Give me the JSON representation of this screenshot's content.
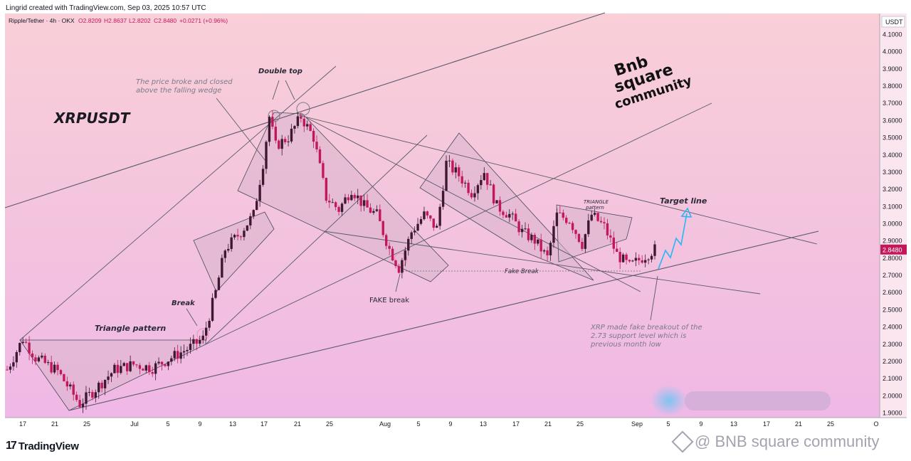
{
  "header": {
    "credit": "Lingrid created with TradingView.com, Sep 03, 2025 10:57 UTC",
    "legend_symbol": "Ripple/Tether · 4h · OKX",
    "legend_o": "O2.8209",
    "legend_h": "H2.8637",
    "legend_l": "L2.8202",
    "legend_c": "C2.8480",
    "legend_change": "+0.0271 (+0.96%)"
  },
  "colors": {
    "bull": "#3d1830",
    "bear": "#c2185b",
    "line": "#5a5a6a",
    "pattern_fill": "#d8b4cc",
    "price_tag": "#c2185b",
    "target_arrow": "#29b6f6"
  },
  "chart_data": {
    "type": "candlestick",
    "symbol_title": "XRPUSDT",
    "quote_currency": "USDT",
    "y_ticks": [
      "1.9000",
      "2.0000",
      "2.1000",
      "2.2000",
      "2.3000",
      "2.4000",
      "2.5000",
      "2.6000",
      "2.7000",
      "2.8000",
      "2.9000",
      "3.0000",
      "3.1000",
      "3.2000",
      "3.3000",
      "3.4000",
      "3.5000",
      "3.6000",
      "3.7000",
      "3.8000",
      "3.9000",
      "4.0000",
      "4.1000"
    ],
    "ylim": [
      1.87,
      4.17
    ],
    "x_ticks": [
      "17",
      "21",
      "25",
      "Jul",
      "5",
      "9",
      "13",
      "17",
      "21",
      "25",
      "Aug",
      "5",
      "9",
      "13",
      "17",
      "21",
      "25",
      "Sep",
      "5",
      "9",
      "13",
      "17",
      "21",
      "25",
      "O"
    ],
    "last_price": "2.8480",
    "price_path": [
      {
        "t": 0,
        "p": 2.15
      },
      {
        "t": 5,
        "p": 2.33
      },
      {
        "t": 9,
        "p": 2.22
      },
      {
        "t": 16,
        "p": 2.14
      },
      {
        "t": 23,
        "p": 1.95
      },
      {
        "t": 27,
        "p": 2.02
      },
      {
        "t": 34,
        "p": 2.15
      },
      {
        "t": 40,
        "p": 2.18
      },
      {
        "t": 46,
        "p": 2.16
      },
      {
        "t": 52,
        "p": 2.22
      },
      {
        "t": 58,
        "p": 2.28
      },
      {
        "t": 62,
        "p": 2.33
      },
      {
        "t": 66,
        "p": 2.6
      },
      {
        "t": 69,
        "p": 2.85
      },
      {
        "t": 74,
        "p": 2.95
      },
      {
        "t": 78,
        "p": 3.05
      },
      {
        "t": 81,
        "p": 3.35
      },
      {
        "t": 83,
        "p": 3.62
      },
      {
        "t": 85,
        "p": 3.45
      },
      {
        "t": 89,
        "p": 3.5
      },
      {
        "t": 93,
        "p": 3.62
      },
      {
        "t": 97,
        "p": 3.5
      },
      {
        "t": 101,
        "p": 3.15
      },
      {
        "t": 105,
        "p": 3.08
      },
      {
        "t": 109,
        "p": 3.2
      },
      {
        "t": 113,
        "p": 3.1
      },
      {
        "t": 117,
        "p": 3.05
      },
      {
        "t": 121,
        "p": 2.85
      },
      {
        "t": 124,
        "p": 2.74
      },
      {
        "t": 128,
        "p": 2.95
      },
      {
        "t": 132,
        "p": 3.05
      },
      {
        "t": 136,
        "p": 2.97
      },
      {
        "t": 139,
        "p": 3.35
      },
      {
        "t": 143,
        "p": 3.28
      },
      {
        "t": 147,
        "p": 3.18
      },
      {
        "t": 151,
        "p": 3.3
      },
      {
        "t": 155,
        "p": 3.1
      },
      {
        "t": 159,
        "p": 3.05
      },
      {
        "t": 163,
        "p": 2.95
      },
      {
        "t": 167,
        "p": 2.9
      },
      {
        "t": 171,
        "p": 2.8
      },
      {
        "t": 174,
        "p": 3.05
      },
      {
        "t": 178,
        "p": 3.02
      },
      {
        "t": 182,
        "p": 2.88
      },
      {
        "t": 185,
        "p": 3.05
      },
      {
        "t": 189,
        "p": 2.98
      },
      {
        "t": 193,
        "p": 2.82
      },
      {
        "t": 197,
        "p": 2.75
      },
      {
        "t": 201,
        "p": 2.8
      },
      {
        "t": 205,
        "p": 2.85
      }
    ],
    "candle_count": 206,
    "annotations": {
      "triangle_pattern": "Triangle pattern",
      "break": "Break",
      "broke_wedge": "The price broke and closed above the falling wedge",
      "double_top": "Double top",
      "fake_break_upper": "FAKE break",
      "fake_break_lower": "Fake Break",
      "triangle_small_1": "TRIANGLE",
      "triangle_small_2": "pattern",
      "target_line": "Target line",
      "xrp_note": "XRP made fake breakout of the 2.73 support level which is previous month low"
    }
  },
  "watermarks": {
    "bnb_line1": "Bnb",
    "bnb_line2": "square",
    "bnb_line3": "community",
    "footer_brand": "TradingView",
    "footer_right": "@ BNB square community"
  }
}
